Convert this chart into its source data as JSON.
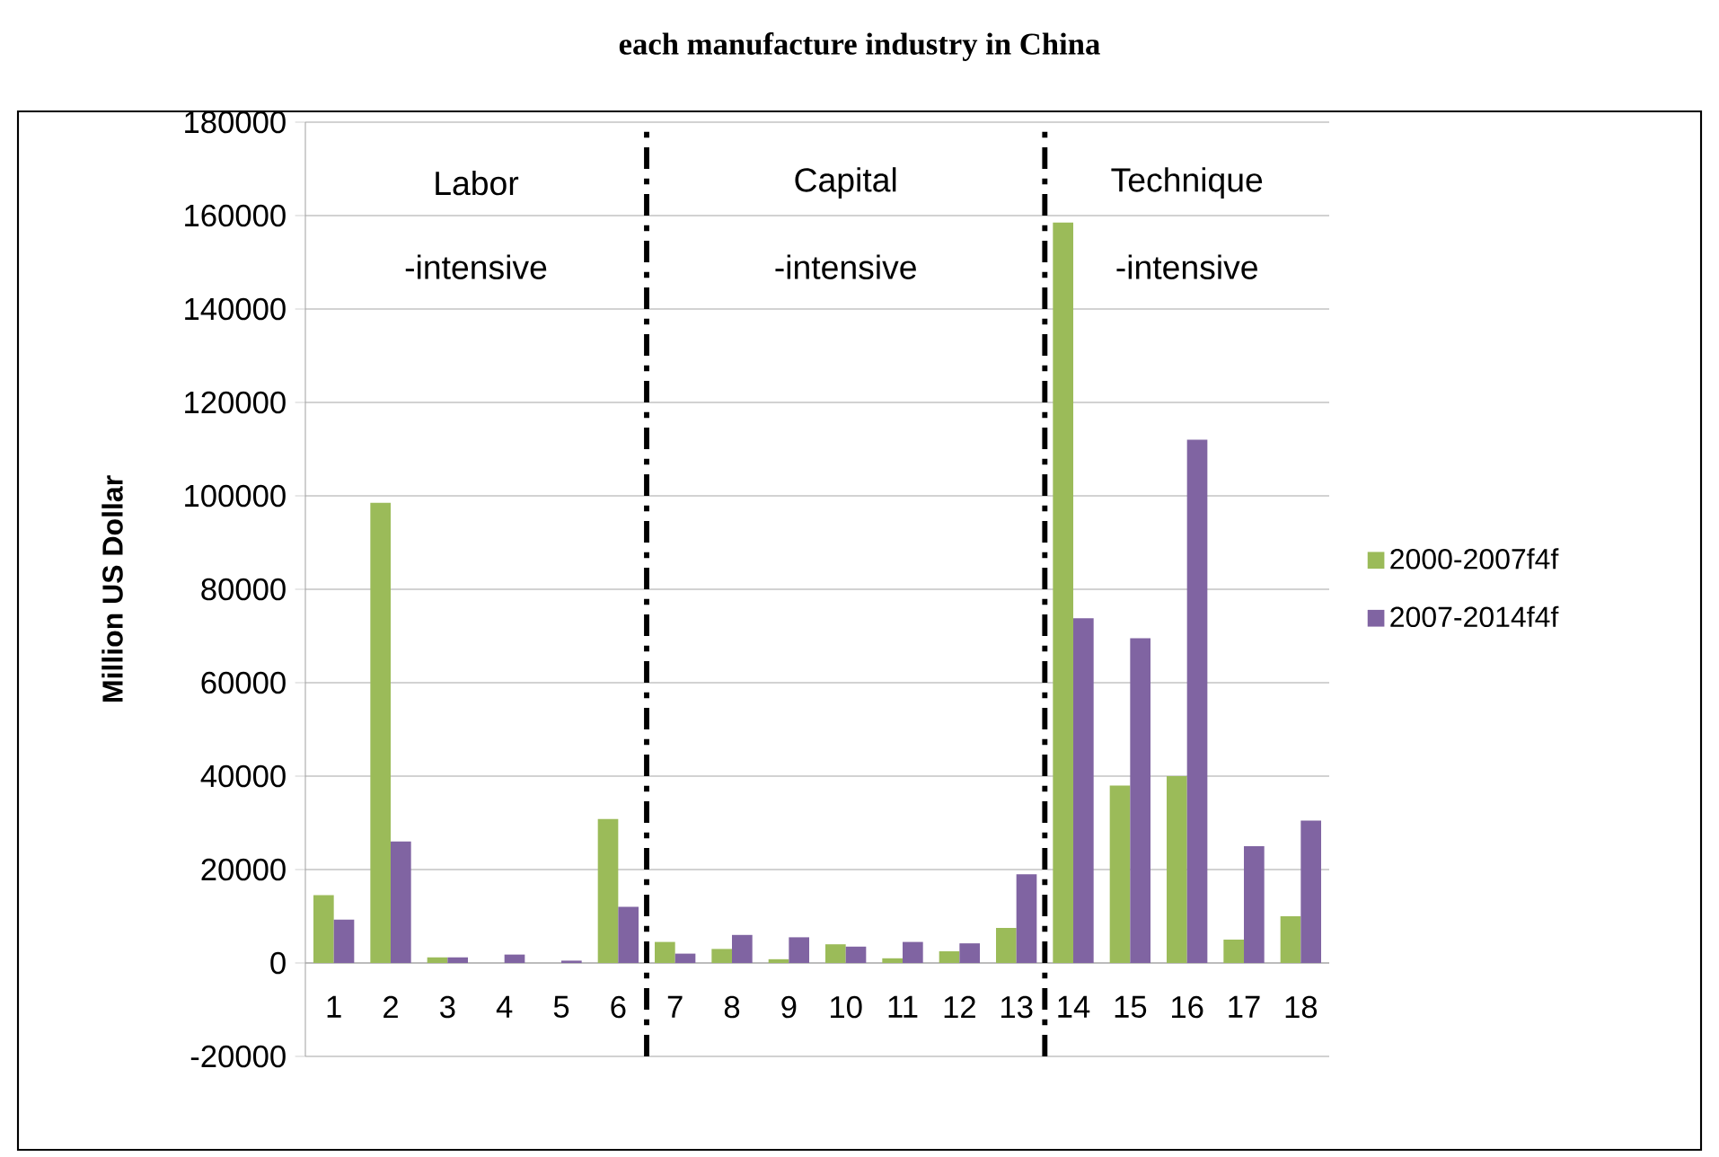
{
  "chart_data": {
    "type": "bar",
    "title": "each manufacture industry in China",
    "ylabel": "Million US Dollar",
    "x": [
      1,
      2,
      3,
      4,
      5,
      6,
      7,
      8,
      9,
      10,
      11,
      12,
      13,
      14,
      15,
      16,
      17,
      18
    ],
    "series": [
      {
        "name": "2000-2007f4f",
        "color": "#9bbb59",
        "values": [
          14500,
          98500,
          1200,
          0,
          0,
          30800,
          4500,
          3000,
          800,
          4000,
          1000,
          2500,
          7500,
          158500,
          38000,
          40000,
          5000,
          10000
        ]
      },
      {
        "name": "2007-2014f4f",
        "color": "#8064a2",
        "values": [
          9300,
          26000,
          1200,
          1800,
          500,
          12000,
          2000,
          6000,
          5500,
          3500,
          4500,
          4200,
          19000,
          73800,
          69500,
          112000,
          25000,
          30500
        ]
      }
    ],
    "xlim": [
      0.5,
      18.5
    ],
    "xticks": [
      1,
      2,
      3,
      4,
      5,
      6,
      7,
      8,
      9,
      10,
      11,
      12,
      13,
      14,
      15,
      16,
      17,
      18
    ],
    "ylim": [
      -20000,
      180000
    ],
    "yticks": [
      -20000,
      0,
      20000,
      40000,
      60000,
      80000,
      100000,
      120000,
      140000,
      160000,
      180000
    ],
    "ref_lines": [
      {
        "axis": "x",
        "value": 6.5,
        "line_style": "dashdot",
        "color": "#000000"
      },
      {
        "axis": "x",
        "value": 13.5,
        "line_style": "dashdot",
        "color": "#000000"
      }
    ],
    "annotations": [
      "Labor",
      "-intensive",
      "Capital",
      "-intensive",
      "Technique",
      "-intensive"
    ],
    "grid": "y",
    "legend": "right"
  }
}
